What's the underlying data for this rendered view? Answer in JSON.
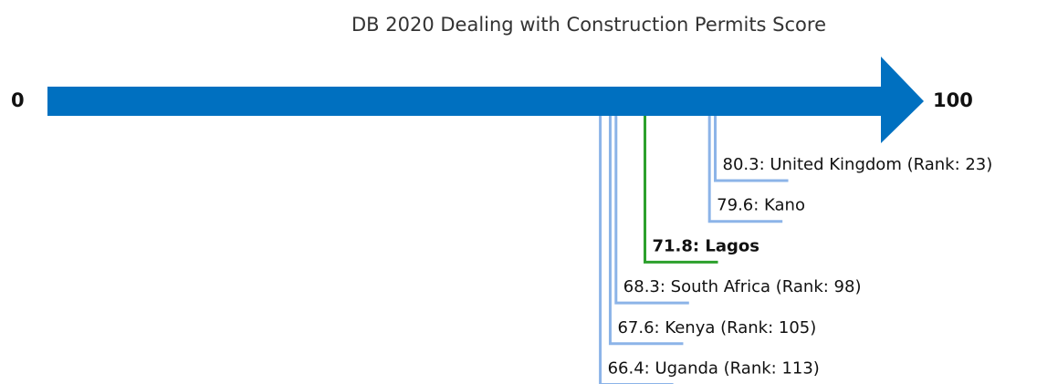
{
  "chart_data": {
    "type": "number-line",
    "title": "DB 2020 Dealing with Construction Permits Score",
    "xlim": [
      0,
      100
    ],
    "xticks": [
      0,
      100
    ],
    "arrow_color": "#0070c0",
    "values": [
      80.3,
      79.6,
      71.8,
      68.3,
      67.6,
      66.4
    ],
    "value_labels": [
      "80.3: United Kingdom (Rank: 23)",
      "79.6: Kano",
      "71.8: Lagos",
      "68.3: South Africa (Rank: 98)",
      "67.6: Kenya (Rank: 105)",
      "66.4: Uganda (Rank: 113)"
    ],
    "colors": [
      "#8cb4e8",
      "#8cb4e8",
      "#2ca02c",
      "#8cb4e8",
      "#8cb4e8",
      "#8cb4e8"
    ],
    "bold": [
      false,
      false,
      true,
      false,
      false,
      false
    ]
  }
}
